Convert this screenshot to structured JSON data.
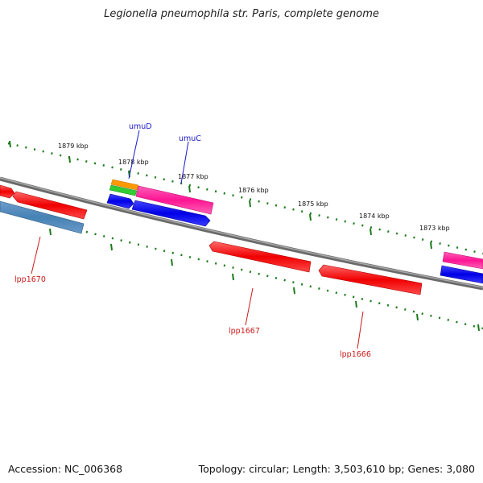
{
  "title": "Legionella pneumophila str. Paris, complete genome",
  "footer": {
    "accession": "Accession: NC_006368",
    "summary": "Topology: circular; Length: 3,503,610 bp; Genes: 3,080"
  },
  "colors": {
    "backbone": "#808080",
    "tick": "#1a7a1a",
    "label_blue": "#1a1acc",
    "label_red": "#cc1a1a"
  },
  "ticks": [
    "1879 kbp",
    "1878 kbp",
    "1877 kbp",
    "1876 kbp",
    "1875 kbp",
    "1874 kbp",
    "1873 kbp"
  ],
  "gene_labels": [
    {
      "id": "umuD",
      "text": "umuD",
      "color": "#1a1acc"
    },
    {
      "id": "umuC",
      "text": "umuC",
      "color": "#1a1acc"
    },
    {
      "id": "lpp1670",
      "text": "lpp1670",
      "color": "#cc1a1a"
    },
    {
      "id": "lpp1667",
      "text": "lpp1667",
      "color": "#cc1a1a"
    },
    {
      "id": "lpp1666",
      "text": "lpp1666",
      "color": "#cc1a1a"
    }
  ]
}
